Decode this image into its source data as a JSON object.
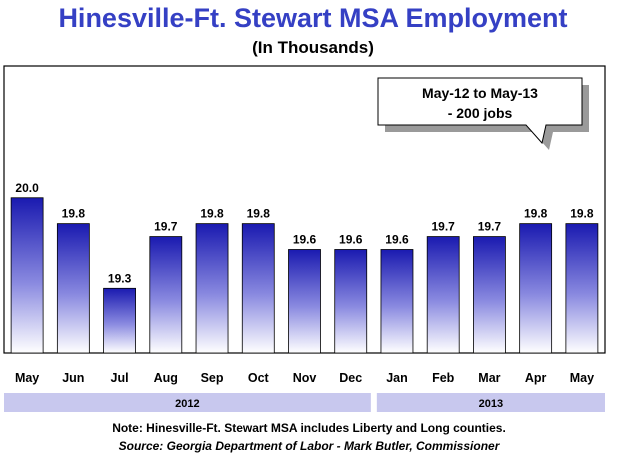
{
  "chart_data": {
    "type": "bar",
    "title": "Hinesville-Ft. Stewart MSA Employment",
    "subtitle": "(In Thousands)",
    "categories": [
      "May",
      "Jun",
      "Jul",
      "Aug",
      "Sep",
      "Oct",
      "Nov",
      "Dec",
      "Jan",
      "Feb",
      "Mar",
      "Apr",
      "May"
    ],
    "values": [
      20.0,
      19.8,
      19.3,
      19.7,
      19.8,
      19.8,
      19.6,
      19.6,
      19.6,
      19.7,
      19.7,
      19.8,
      19.8
    ],
    "value_labels": [
      "20.0",
      "19.8",
      "19.3",
      "19.7",
      "19.8",
      "19.8",
      "19.6",
      "19.6",
      "19.6",
      "19.7",
      "19.7",
      "19.8",
      "19.8"
    ],
    "year_groups": [
      {
        "label": "2012",
        "start_index": 0,
        "end_index": 7
      },
      {
        "label": "2013",
        "start_index": 8,
        "end_index": 12
      }
    ],
    "ylim": [
      18.8,
      20.4
    ],
    "grid": false,
    "xlabel": "",
    "ylabel": "",
    "bar_color_top": "#1a1ab0",
    "bar_color_bottom": "#ffffff",
    "year_band_color": "#c8c8ee"
  },
  "callout": {
    "line1": "May-12 to May-13",
    "line2": "- 200 jobs"
  },
  "note": "Note:  Hinesville-Ft. Stewart MSA includes Liberty and Long counties.",
  "source": "Source: Georgia Department of Labor - Mark Butler, Commissioner",
  "colors": {
    "title": "#3540c4",
    "plot_border": "#000000"
  }
}
